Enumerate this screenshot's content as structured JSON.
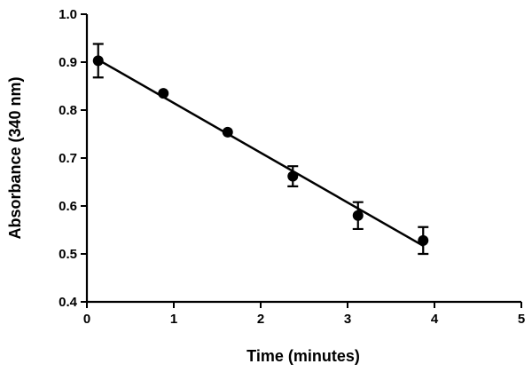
{
  "chart_data": {
    "type": "scatter",
    "title": "",
    "xlabel": "Time (minutes)",
    "ylabel": "Absorbance (340 nm)",
    "xlim": [
      0,
      5
    ],
    "ylim": [
      0.4,
      1.0
    ],
    "x_ticks": [
      "0",
      "1",
      "2",
      "3",
      "4",
      "5"
    ],
    "y_ticks": [
      "0.4",
      "0.5",
      "0.6",
      "0.7",
      "0.8",
      "0.9",
      "1.0"
    ],
    "grid": false,
    "points": [
      {
        "x": 0.13,
        "y": 0.903,
        "err": 0.035
      },
      {
        "x": 0.88,
        "y": 0.835,
        "err": 0.0
      },
      {
        "x": 1.62,
        "y": 0.754,
        "err": 0.0
      },
      {
        "x": 2.37,
        "y": 0.662,
        "err": 0.021
      },
      {
        "x": 3.12,
        "y": 0.58,
        "err": 0.028
      },
      {
        "x": 3.87,
        "y": 0.528,
        "err": 0.028
      }
    ],
    "fit_line": {
      "x": [
        0.13,
        3.87
      ],
      "y": [
        0.905,
        0.517
      ]
    },
    "colors": {
      "marker": "#000000",
      "line": "#000000"
    }
  }
}
